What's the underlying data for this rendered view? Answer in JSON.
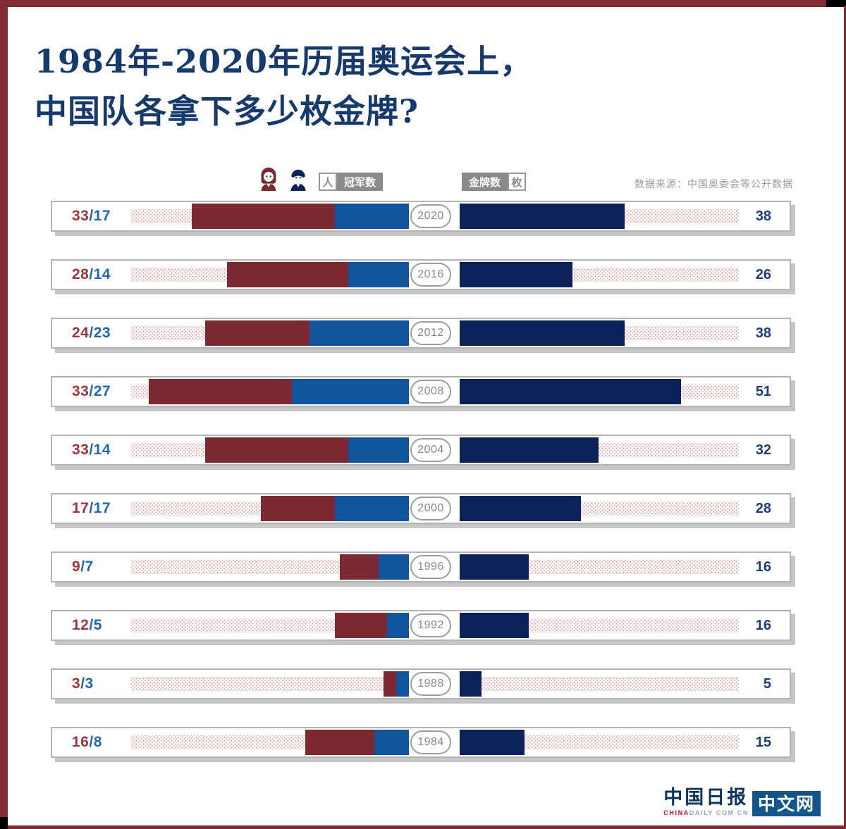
{
  "title": {
    "line1": "1984年-2020年历届奥运会上，",
    "line2": "中国队各拿下多少枚金牌?"
  },
  "legend": {
    "champion_unit": "人",
    "champion_label": "冠军数",
    "gold_label": "金牌数",
    "gold_unit": "枚",
    "source": "数据来源：中国奥委会等公开数据"
  },
  "colors": {
    "frame": "#7f2a35",
    "bar_female": "#7d2932",
    "bar_male": "#0f549c",
    "bar_gold": "#0c2157",
    "label_female": "#9c3740",
    "label_male": "#2068ad",
    "gold_value_text": "#1e3d78",
    "title_text": "#173a6d",
    "track_dots": "#dd98a0"
  },
  "chart_data": {
    "type": "bar",
    "orientation": "horizontal",
    "title": "1984年-2020年历届奥运会上，中国队各拿下多少枚金牌?",
    "separator": "/",
    "categories": [
      "2020",
      "2016",
      "2012",
      "2008",
      "2004",
      "2000",
      "1996",
      "1992",
      "1988",
      "1984"
    ],
    "series": [
      {
        "name": "女性冠军数（人）",
        "color": "#7d2932",
        "values": [
          33,
          28,
          24,
          33,
          33,
          17,
          9,
          12,
          3,
          16
        ]
      },
      {
        "name": "男性冠军数（人）",
        "color": "#0f549c",
        "values": [
          17,
          14,
          23,
          27,
          14,
          17,
          7,
          5,
          3,
          8
        ]
      },
      {
        "name": "金牌数（枚）",
        "color": "#0c2157",
        "values": [
          38,
          26,
          38,
          51,
          32,
          28,
          16,
          16,
          5,
          15
        ]
      }
    ],
    "rows": [
      {
        "year": "2020",
        "female_champions": 33,
        "male_champions": 17,
        "gold": 38
      },
      {
        "year": "2016",
        "female_champions": 28,
        "male_champions": 14,
        "gold": 26
      },
      {
        "year": "2012",
        "female_champions": 24,
        "male_champions": 23,
        "gold": 38
      },
      {
        "year": "2008",
        "female_champions": 33,
        "male_champions": 27,
        "gold": 51
      },
      {
        "year": "2004",
        "female_champions": 33,
        "male_champions": 14,
        "gold": 32
      },
      {
        "year": "2000",
        "female_champions": 17,
        "male_champions": 17,
        "gold": 28
      },
      {
        "year": "1996",
        "female_champions": 9,
        "male_champions": 7,
        "gold": 16
      },
      {
        "year": "1992",
        "female_champions": 12,
        "male_champions": 5,
        "gold": 16
      },
      {
        "year": "1988",
        "female_champions": 3,
        "male_champions": 3,
        "gold": 5
      },
      {
        "year": "1984",
        "female_champions": 16,
        "male_champions": 8,
        "gold": 15
      }
    ]
  },
  "logo": {
    "cn": "中国日报",
    "en_prefix": "CHINA",
    "en_suffix": "DAILY COM CN",
    "site": "中文网"
  }
}
